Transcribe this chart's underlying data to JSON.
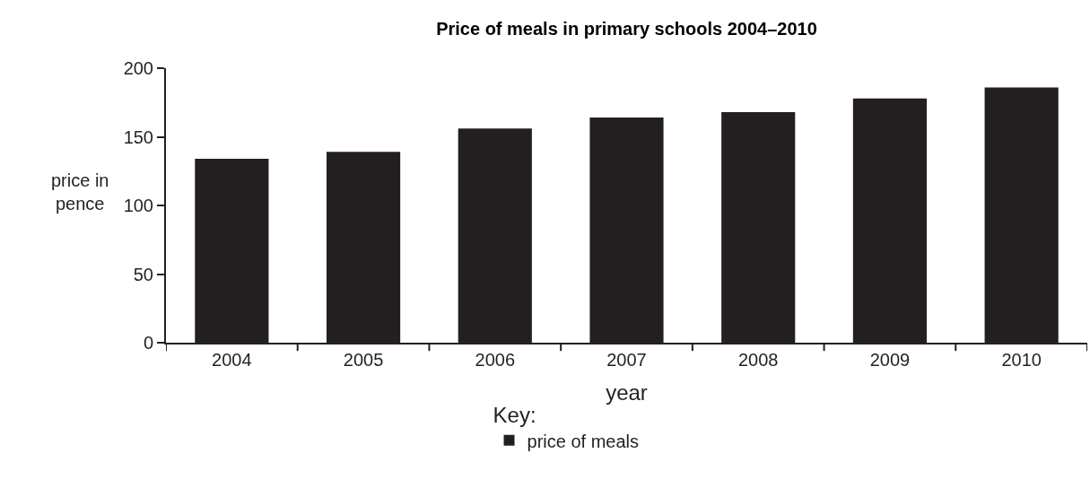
{
  "chart_data": {
    "type": "bar",
    "title": "Price of meals in primary schools 2004–2010",
    "xlabel": "year",
    "ylabel": "price in pence",
    "legend_title": "Key:",
    "categories": [
      "2004",
      "2005",
      "2006",
      "2007",
      "2008",
      "2009",
      "2010"
    ],
    "series": [
      {
        "name": "price of meals",
        "color": "#231f20",
        "values": [
          134,
          139,
          156,
          164,
          168,
          178,
          186
        ]
      }
    ],
    "ylim": [
      0,
      200
    ],
    "yticks": [
      0,
      50,
      100,
      150,
      200
    ],
    "grid": false,
    "legend": "bottom"
  }
}
